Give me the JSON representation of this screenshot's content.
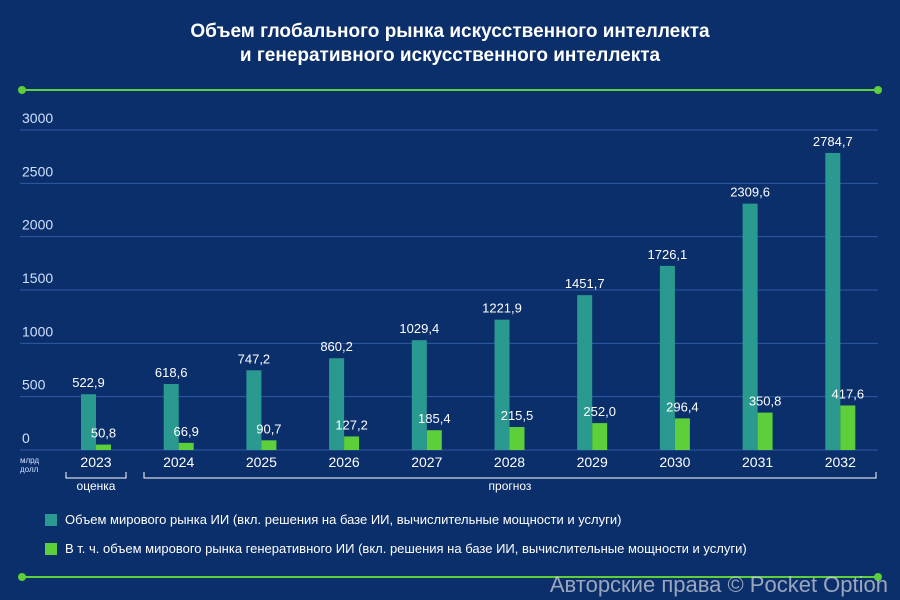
{
  "title_line1": "Объем глобального рынка искусственного интеллекта",
  "title_line2": "и генеративного искусственного интеллекта",
  "unit_label_line1": "млрд",
  "unit_label_line2": "долл",
  "period_estimate": "оценка",
  "period_forecast": "прогноз",
  "copyright": "Авторские права © Pocket Option",
  "colors": {
    "background": "#0b2f6b",
    "teal": "#2a9a90",
    "green": "#5ccf3a",
    "grid": "#2f5aa3",
    "axis_text": "#cfe0ff"
  },
  "chart_data": {
    "type": "bar",
    "title": "Объем глобального рынка искусственного интеллекта и генеративного искусственного интеллекта",
    "categories": [
      "2023",
      "2024",
      "2025",
      "2026",
      "2027",
      "2028",
      "2029",
      "2030",
      "2031",
      "2032"
    ],
    "y_ticks": [
      "0",
      "500",
      "1000",
      "1500",
      "2000",
      "2500",
      "3000"
    ],
    "ylim": [
      0,
      3000
    ],
    "grid": true,
    "legend_position": "bottom-left",
    "series": [
      {
        "name": "Объем мирового рынка ИИ (вкл. решения на базе ИИ, вычислительные мощности и услуги)",
        "values": [
          522.9,
          618.6,
          747.2,
          860.2,
          1029.4,
          1221.9,
          1451.7,
          1726.1,
          2309.6,
          2784.7
        ],
        "labels": [
          "522,9",
          "618,6",
          "747,2",
          "860,2",
          "1029,4",
          "1221,9",
          "1451,7",
          "1726,1",
          "2309,6",
          "2784,7"
        ]
      },
      {
        "name": "В т. ч. объем мирового рынка генеративного ИИ (вкл. решения на базе ИИ, вычислительные мощности и услуги)",
        "values": [
          50.8,
          66.9,
          90.7,
          127.2,
          185.4,
          215.5,
          252.0,
          296.4,
          350.8,
          417.6
        ],
        "labels": [
          "50,8",
          "66,9",
          "90,7",
          "127,2",
          "185,4",
          "215,5",
          "252,0",
          "296,4",
          "350,8",
          "417,6"
        ]
      }
    ]
  }
}
